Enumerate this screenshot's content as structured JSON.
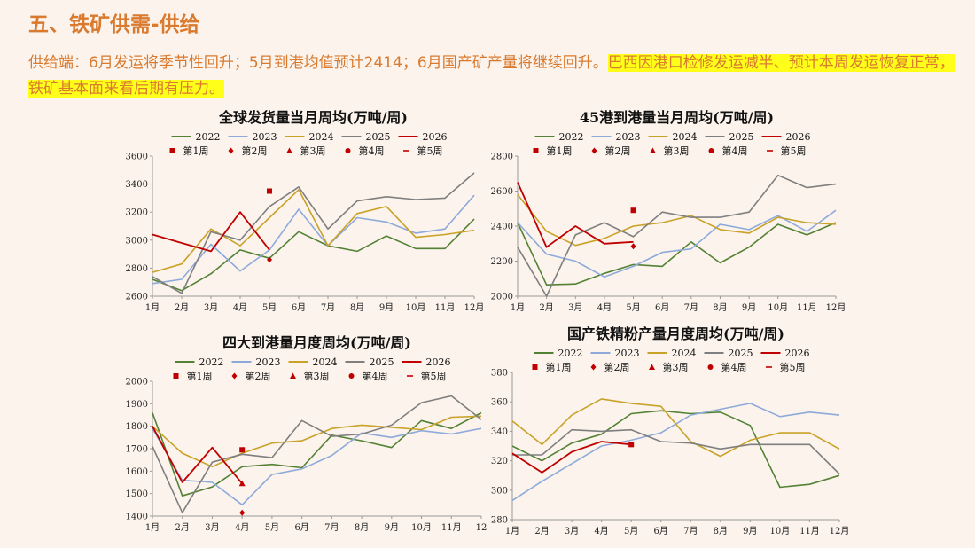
{
  "page": {
    "title": "五、铁矿供需-供给",
    "summary_plain": "供给端：6月发运将季节性回升；5月到港均值预计2414；6月国产矿产量将继续回升。",
    "summary_highlight": "巴西因港口检修发运减半、预计本周发运恢复正常，铁矿基本面来看后期有压力。"
  },
  "colors": {
    "2022": "#548235",
    "2023": "#8eaadb",
    "2024": "#c9a227",
    "2025": "#7f7f7f",
    "2026": "#c00000",
    "markers": "#c00000"
  },
  "legend_weeks": [
    "第1周",
    "第2周",
    "第3周",
    "第4周",
    "第5周"
  ],
  "chart_data": [
    {
      "type": "line",
      "title": "全球发货量当月周均(万吨/周)",
      "categories": [
        "1月",
        "2月",
        "3月",
        "4月",
        "5月",
        "6月",
        "7月",
        "8月",
        "9月",
        "10月",
        "11月",
        "12月"
      ],
      "ylim": [
        2600,
        3600
      ],
      "yticks": [
        "2600",
        "2800",
        "3000",
        "3200",
        "3400",
        "3600"
      ],
      "series": [
        {
          "name": "2022",
          "values": [
            2720,
            2640,
            2760,
            2930,
            2870,
            3060,
            2960,
            2920,
            3030,
            2940,
            2940,
            3150
          ]
        },
        {
          "name": "2023",
          "values": [
            2690,
            2720,
            2970,
            2780,
            2930,
            3220,
            2960,
            3160,
            3130,
            3050,
            3080,
            3320
          ]
        },
        {
          "name": "2024",
          "values": [
            2770,
            2830,
            3080,
            2960,
            3160,
            3360,
            2960,
            3190,
            3240,
            3020,
            3040,
            3070
          ]
        },
        {
          "name": "2025",
          "values": [
            2740,
            2620,
            3060,
            3000,
            3240,
            3380,
            3080,
            3280,
            3310,
            3290,
            3300,
            3480
          ]
        },
        {
          "name": "2026",
          "values": [
            3040,
            2980,
            2920,
            3200,
            2930,
            null,
            null,
            null,
            null,
            null,
            null,
            null
          ]
        }
      ],
      "week_markers": [
        {
          "week": "第1周",
          "x": "5月",
          "y": 3350
        },
        {
          "week": "第2周",
          "x": "5月",
          "y": 2860
        }
      ]
    },
    {
      "type": "line",
      "title": "45港到港量当月周均(万吨/周)",
      "categories": [
        "1月",
        "2月",
        "3月",
        "4月",
        "5月",
        "6月",
        "7月",
        "8月",
        "9月",
        "10月",
        "11月",
        "12月"
      ],
      "ylim": [
        2000,
        2800
      ],
      "yticks": [
        "2000",
        "2200",
        "2400",
        "2600",
        "2800"
      ],
      "series": [
        {
          "name": "2022",
          "values": [
            2420,
            2065,
            2070,
            2130,
            2180,
            2170,
            2310,
            2190,
            2280,
            2410,
            2350,
            2420
          ]
        },
        {
          "name": "2023",
          "values": [
            2420,
            2240,
            2200,
            2110,
            2170,
            2250,
            2270,
            2410,
            2380,
            2460,
            2370,
            2490
          ]
        },
        {
          "name": "2024",
          "values": [
            2580,
            2370,
            2290,
            2330,
            2400,
            2420,
            2460,
            2380,
            2360,
            2450,
            2420,
            2410
          ]
        },
        {
          "name": "2025",
          "values": [
            2280,
            2000,
            2350,
            2420,
            2340,
            2480,
            2450,
            2450,
            2480,
            2690,
            2620,
            2640
          ]
        },
        {
          "name": "2026",
          "values": [
            2650,
            2280,
            2400,
            2300,
            2310,
            null,
            null,
            null,
            null,
            null,
            null,
            null
          ]
        }
      ],
      "week_markers": [
        {
          "week": "第1周",
          "x": "5月",
          "y": 2490
        },
        {
          "week": "第2周",
          "x": "5月",
          "y": 2285
        }
      ]
    },
    {
      "type": "line",
      "title": "四大到港量月度周均(万吨/周)",
      "categories": [
        "1月",
        "2月",
        "3月",
        "4月",
        "5月",
        "6月",
        "7月",
        "8月",
        "9月",
        "10月",
        "11月",
        "12"
      ],
      "ylim": [
        1400,
        2000
      ],
      "yticks": [
        "1400",
        "1500",
        "1600",
        "1700",
        "1800",
        "1900",
        "2000"
      ],
      "series": [
        {
          "name": "2022",
          "values": [
            1860,
            1490,
            1530,
            1620,
            1630,
            1615,
            1760,
            1735,
            1705,
            1825,
            1790,
            1860
          ]
        },
        {
          "name": "2023",
          "values": [
            1790,
            1560,
            1550,
            1450,
            1585,
            1610,
            1670,
            1770,
            1750,
            1780,
            1765,
            1790
          ]
        },
        {
          "name": "2024",
          "values": [
            1800,
            1680,
            1620,
            1680,
            1725,
            1735,
            1790,
            1805,
            1795,
            1785,
            1840,
            1845
          ]
        },
        {
          "name": "2025",
          "values": [
            1710,
            1415,
            1640,
            1675,
            1660,
            1825,
            1755,
            1765,
            1805,
            1905,
            1935,
            1830
          ]
        },
        {
          "name": "2026",
          "values": [
            1800,
            1550,
            1705,
            1545,
            null,
            null,
            null,
            null,
            null,
            null,
            null,
            null
          ]
        }
      ],
      "week_markers": [
        {
          "week": "第1周",
          "x": "4月",
          "y": 1695
        },
        {
          "week": "第2周",
          "x": "4月",
          "y": 1415
        },
        {
          "week": "第3周",
          "x": "4月",
          "y": 1545
        }
      ]
    },
    {
      "type": "line",
      "title": "国产铁精粉产量月度周均(万吨/周)",
      "categories": [
        "1月",
        "2月",
        "3月",
        "4月",
        "5月",
        "6月",
        "7月",
        "8月",
        "9月",
        "10月",
        "11月",
        "12月"
      ],
      "ylim": [
        280,
        380
      ],
      "yticks": [
        "280",
        "300",
        "320",
        "340",
        "360",
        "380"
      ],
      "series": [
        {
          "name": "2022",
          "values": [
            330,
            320,
            332,
            338,
            352,
            354,
            352,
            353,
            344,
            302,
            304,
            310
          ]
        },
        {
          "name": "2023",
          "values": [
            293,
            306,
            318,
            330,
            334,
            339,
            351,
            355,
            359,
            350,
            353,
            351
          ]
        },
        {
          "name": "2024",
          "values": [
            347,
            331,
            351,
            362,
            359,
            357,
            333,
            323,
            334,
            339,
            339,
            328
          ]
        },
        {
          "name": "2025",
          "values": [
            324,
            324,
            341,
            340,
            341,
            333,
            332,
            328,
            331,
            331,
            331,
            311
          ]
        },
        {
          "name": "2026",
          "values": [
            325,
            312,
            326,
            333,
            331,
            null,
            null,
            null,
            null,
            null,
            null,
            null
          ]
        }
      ],
      "week_markers": [
        {
          "week": "第1周",
          "x": "5月",
          "y": 331
        }
      ]
    }
  ]
}
